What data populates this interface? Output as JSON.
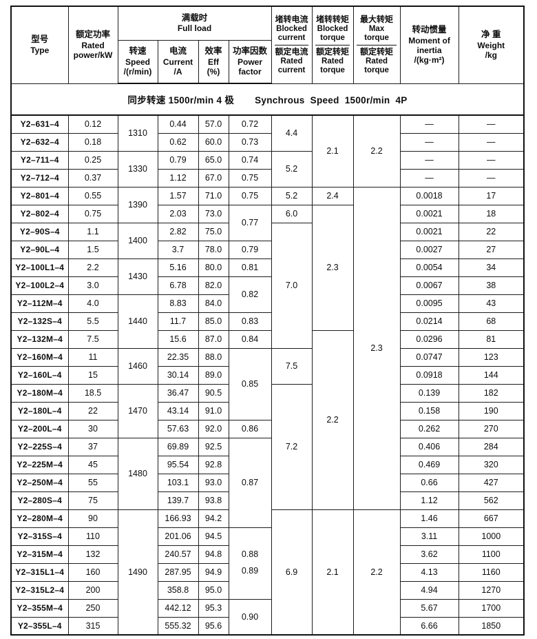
{
  "banner": {
    "cn": "同步转速 1500r/min 4 极",
    "en": "Synchrous Speed 1500r/min 4P"
  },
  "columns": {
    "type": {
      "cn": "型号",
      "en": "Type"
    },
    "power": {
      "cn": "额定功率",
      "en1": "Rated",
      "en2": "power/kW"
    },
    "full_load": {
      "cn": "满载时",
      "en": "Full load"
    },
    "speed": {
      "cn": "转速",
      "en": "Speed",
      "unit": "/(r/min)"
    },
    "current": {
      "cn": "电流",
      "en": "Current",
      "unit": "/A"
    },
    "eff": {
      "cn": "效率",
      "en": "Eff",
      "unit": "(%)"
    },
    "pf": {
      "cn": "功率因数",
      "en1": "Power",
      "en2": "factor"
    },
    "blocked_current": {
      "top_cn": "堵转电流",
      "top_en1": "Blocked",
      "top_en2": "current",
      "bot_cn": "额定电流",
      "bot_en1": "Rated",
      "bot_en2": "current"
    },
    "blocked_torque": {
      "top_cn": "堵转转矩",
      "top_en1": "Blocked",
      "top_en2": "torque",
      "bot_cn": "额定转矩",
      "bot_en1": "Rated",
      "bot_en2": "torque"
    },
    "max_torque": {
      "top_cn": "最大转矩",
      "top_en1": "Max",
      "top_en2": "torque",
      "bot_cn": "额定转矩",
      "bot_en1": "Rated",
      "bot_en2": "torque"
    },
    "inertia": {
      "cn": "转动惯量",
      "en1": "Moment of",
      "en2": "inertia",
      "unit": "/(kg·m²)"
    },
    "weight": {
      "cn": "净 重",
      "en": "Weight",
      "unit": "/kg"
    }
  },
  "rows": [
    {
      "cells": [
        "Y2–631–4",
        "0.12",
        {
          "v": "1310",
          "rs": 2
        },
        "0.44",
        "57.0",
        "0.72",
        {
          "v": "4.4",
          "rs": 2
        },
        {
          "v": "2.1",
          "rs": 4
        },
        {
          "v": "2.2",
          "rs": 4
        },
        "—",
        "—"
      ]
    },
    {
      "cells": [
        "Y2–632–4",
        "0.18",
        "0.62",
        "60.0",
        "0.73",
        "—",
        "—"
      ]
    },
    {
      "cells": [
        "Y2–711–4",
        "0.25",
        {
          "v": "1330",
          "rs": 2
        },
        "0.79",
        "65.0",
        "0.74",
        {
          "v": "5.2",
          "rs": 2
        },
        "—",
        "—"
      ]
    },
    {
      "cells": [
        "Y2–712–4",
        "0.37",
        "1.12",
        "67.0",
        "0.75",
        "—",
        "—"
      ]
    },
    {
      "cells": [
        "Y2–801–4",
        "0.55",
        {
          "v": "1390",
          "rs": 2
        },
        "1.57",
        "71.0",
        "0.75",
        "5.2",
        "2.4",
        {
          "v": "2.3",
          "rs": 18
        },
        "0.0018",
        "17"
      ]
    },
    {
      "cells": [
        "Y2–802–4",
        "0.75",
        "2.03",
        "73.0",
        {
          "v": "0.77",
          "rs": 2
        },
        "6.0",
        {
          "v": "2.3",
          "rs": 7
        },
        "0.0021",
        "18"
      ]
    },
    {
      "cells": [
        "Y2–90S–4",
        "1.1",
        {
          "v": "1400",
          "rs": 2
        },
        "2.82",
        "75.0",
        {
          "v": "7.0",
          "rs": 7
        },
        "0.0021",
        "22"
      ]
    },
    {
      "cells": [
        "Y2–90L–4",
        "1.5",
        "3.7",
        "78.0",
        "0.79",
        "0.0027",
        "27"
      ]
    },
    {
      "cells": [
        "Y2–100L1–4",
        "2.2",
        {
          "v": "1430",
          "rs": 2
        },
        "5.16",
        "80.0",
        "0.81",
        "0.0054",
        "34"
      ]
    },
    {
      "cells": [
        "Y2–100L2–4",
        "3.0",
        "6.78",
        "82.0",
        {
          "v": "0.82",
          "rs": 2
        },
        "0.0067",
        "38"
      ]
    },
    {
      "cells": [
        "Y2–112M–4",
        "4.0",
        {
          "v": "1440",
          "rs": 3
        },
        "8.83",
        "84.0",
        "0.0095",
        "43"
      ]
    },
    {
      "cells": [
        "Y2–132S–4",
        "5.5",
        "11.7",
        "85.0",
        "0.83",
        "0.0214",
        "68"
      ]
    },
    {
      "cells": [
        "Y2–132M–4",
        "7.5",
        "15.6",
        "87.0",
        "0.84",
        {
          "v": "2.2",
          "rs": 10
        },
        "0.0296",
        "81"
      ]
    },
    {
      "cells": [
        "Y2–160M–4",
        "11",
        {
          "v": "1460",
          "rs": 2
        },
        "22.35",
        "88.0",
        {
          "v": "0.85",
          "rs": 4
        },
        {
          "v": "7.5",
          "rs": 2
        },
        "0.0747",
        "123"
      ]
    },
    {
      "cells": [
        "Y2–160L–4",
        "15",
        "30.14",
        "89.0",
        "0.0918",
        "144"
      ]
    },
    {
      "cells": [
        "Y2–180M–4",
        "18.5",
        {
          "v": "1470",
          "rs": 3
        },
        "36.47",
        "90.5",
        {
          "v": "7.2",
          "rs": 7
        },
        "0.139",
        "182"
      ]
    },
    {
      "cells": [
        "Y2–180L–4",
        "22",
        "43.14",
        "91.0",
        "0.158",
        "190"
      ]
    },
    {
      "cells": [
        "Y2–200L–4",
        "30",
        "57.63",
        "92.0",
        "0.86",
        "0.262",
        "270"
      ]
    },
    {
      "cells": [
        "Y2–225S–4",
        "37",
        {
          "v": "1480",
          "rs": 4
        },
        "69.89",
        "92.5",
        {
          "v": "0.87",
          "rs": 5
        },
        "0.406",
        "284"
      ]
    },
    {
      "cells": [
        "Y2–225M–4",
        "45",
        "95.54",
        "92.8",
        "0.469",
        "320"
      ]
    },
    {
      "cells": [
        "Y2–250M–4",
        "55",
        "103.1",
        "93.0",
        "0.66",
        "427"
      ]
    },
    {
      "cells": [
        "Y2–280S–4",
        "75",
        "139.7",
        "93.8",
        "1.12",
        "562"
      ]
    },
    {
      "cells": [
        "Y2–280M–4",
        "90",
        {
          "v": "1490",
          "rs": 7
        },
        "166.93",
        "94.2",
        {
          "v": "6.9",
          "rs": 7
        },
        {
          "v": "2.1",
          "rs": 7
        },
        {
          "v": "2.2",
          "rs": 7
        },
        "1.46",
        "667"
      ]
    },
    {
      "cells": [
        "Y2–315S–4",
        "110",
        "201.06",
        "94.5",
        {
          "v": [
            "0.88",
            "0.89"
          ],
          "rs": 4
        },
        "3.11",
        "1000"
      ]
    },
    {
      "cells": [
        "Y2–315M–4",
        "132",
        "240.57",
        "94.8",
        "3.62",
        "1100"
      ]
    },
    {
      "cells": [
        "Y2–315L1–4",
        "160",
        "287.95",
        "94.9",
        "4.13",
        "1160"
      ]
    },
    {
      "cells": [
        "Y2–315L2–4",
        "200",
        "358.8",
        "95.0",
        "4.94",
        "1270"
      ]
    },
    {
      "cells": [
        "Y2–355M–4",
        "250",
        "442.12",
        "95.3",
        {
          "v": "0.90",
          "rs": 2
        },
        "5.67",
        "1700"
      ]
    },
    {
      "cells": [
        "Y2–355L–4",
        "315",
        "555.32",
        "95.6",
        "6.66",
        "1850"
      ]
    }
  ]
}
